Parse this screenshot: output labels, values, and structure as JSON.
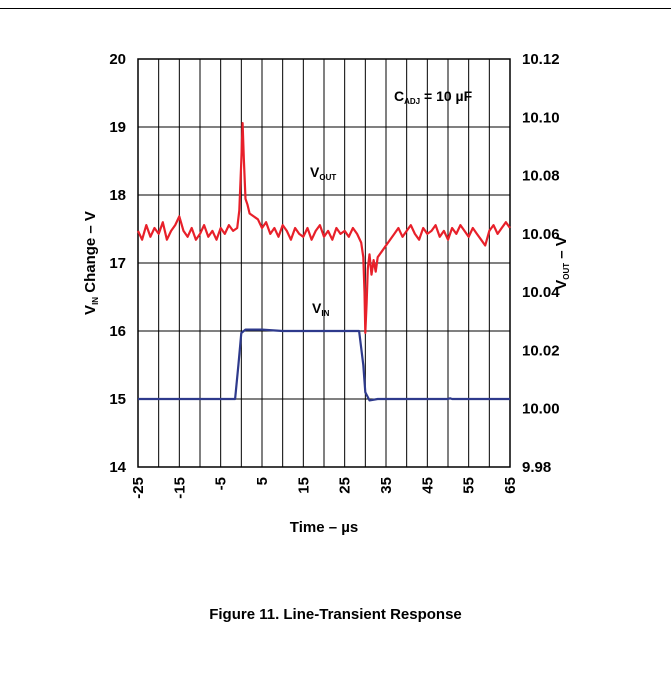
{
  "chart_data": {
    "type": "line",
    "x_axis": {
      "label_main": "Time – µs",
      "range": [
        -25,
        65
      ],
      "grid_step": 5,
      "tick_values": [
        -25,
        -15,
        -5,
        5,
        15,
        25,
        35,
        45,
        55,
        65
      ],
      "tick_labels": [
        "-25",
        "-15",
        "-5",
        "5",
        "15",
        "25",
        "35",
        "45",
        "55",
        "65"
      ]
    },
    "y_left": {
      "label_main": "V",
      "label_sub": "IN",
      "label_rest": " Change – V",
      "range": [
        14,
        20
      ],
      "tick_values": [
        14,
        15,
        16,
        17,
        18,
        19,
        20
      ],
      "tick_labels": [
        "14",
        "15",
        "16",
        "17",
        "18",
        "19",
        "20"
      ]
    },
    "y_right": {
      "label_main": "V",
      "label_sub": "OUT",
      "label_rest": " – V",
      "range": [
        9.98,
        10.12
      ],
      "tick_values": [
        9.98,
        10.0,
        10.02,
        10.04,
        10.06,
        10.08,
        10.1,
        10.12
      ],
      "tick_labels": [
        "9.98",
        "10.00",
        "10.02",
        "10.04",
        "10.06",
        "10.08",
        "10.10",
        "10.12"
      ]
    },
    "grid": true,
    "annotation": {
      "main": "C",
      "sub": "ADJ",
      "rest": " = 10 µF"
    },
    "series": [
      {
        "label_main": "V",
        "label_sub": "OUT",
        "color": "#e8202a",
        "axis": "right",
        "points": [
          [
            -25,
            10.061
          ],
          [
            -24,
            10.058
          ],
          [
            -23,
            10.063
          ],
          [
            -22,
            10.059
          ],
          [
            -21,
            10.062
          ],
          [
            -20,
            10.06
          ],
          [
            -19,
            10.064
          ],
          [
            -18,
            10.058
          ],
          [
            -17,
            10.061
          ],
          [
            -16,
            10.063
          ],
          [
            -15,
            10.066
          ],
          [
            -14,
            10.061
          ],
          [
            -13,
            10.059
          ],
          [
            -12,
            10.062
          ],
          [
            -11,
            10.058
          ],
          [
            -10,
            10.06
          ],
          [
            -9,
            10.063
          ],
          [
            -8,
            10.059
          ],
          [
            -7,
            10.061
          ],
          [
            -6,
            10.058
          ],
          [
            -5,
            10.062
          ],
          [
            -4,
            10.06
          ],
          [
            -3,
            10.063
          ],
          [
            -2,
            10.061
          ],
          [
            -1,
            10.062
          ],
          [
            -0.5,
            10.068
          ],
          [
            0,
            10.085
          ],
          [
            0.3,
            10.098
          ],
          [
            0.6,
            10.086
          ],
          [
            1,
            10.072
          ],
          [
            1.5,
            10.07
          ],
          [
            2,
            10.067
          ],
          [
            3,
            10.066
          ],
          [
            4,
            10.065
          ],
          [
            5,
            10.062
          ],
          [
            6,
            10.064
          ],
          [
            7,
            10.06
          ],
          [
            8,
            10.062
          ],
          [
            9,
            10.059
          ],
          [
            10,
            10.063
          ],
          [
            11,
            10.061
          ],
          [
            12,
            10.058
          ],
          [
            13,
            10.062
          ],
          [
            14,
            10.06
          ],
          [
            15,
            10.059
          ],
          [
            16,
            10.062
          ],
          [
            17,
            10.058
          ],
          [
            18,
            10.061
          ],
          [
            19,
            10.063
          ],
          [
            20,
            10.059
          ],
          [
            21,
            10.061
          ],
          [
            22,
            10.058
          ],
          [
            23,
            10.062
          ],
          [
            24,
            10.06
          ],
          [
            25,
            10.061
          ],
          [
            26,
            10.059
          ],
          [
            27,
            10.062
          ],
          [
            28,
            10.06
          ],
          [
            29,
            10.057
          ],
          [
            29.5,
            10.052
          ],
          [
            29.8,
            10.04
          ],
          [
            30.0,
            10.026
          ],
          [
            30.3,
            10.036
          ],
          [
            30.6,
            10.048
          ],
          [
            31,
            10.053
          ],
          [
            31.5,
            10.046
          ],
          [
            32,
            10.051
          ],
          [
            32.5,
            10.047
          ],
          [
            33,
            10.052
          ],
          [
            34,
            10.054
          ],
          [
            35,
            10.056
          ],
          [
            36,
            10.058
          ],
          [
            37,
            10.06
          ],
          [
            38,
            10.062
          ],
          [
            39,
            10.059
          ],
          [
            40,
            10.061
          ],
          [
            41,
            10.063
          ],
          [
            42,
            10.06
          ],
          [
            43,
            10.058
          ],
          [
            44,
            10.062
          ],
          [
            45,
            10.06
          ],
          [
            46,
            10.061
          ],
          [
            47,
            10.063
          ],
          [
            48,
            10.059
          ],
          [
            49,
            10.061
          ],
          [
            50,
            10.058
          ],
          [
            51,
            10.062
          ],
          [
            52,
            10.06
          ],
          [
            53,
            10.063
          ],
          [
            54,
            10.061
          ],
          [
            55,
            10.059
          ],
          [
            56,
            10.062
          ],
          [
            57,
            10.06
          ],
          [
            58,
            10.058
          ],
          [
            59,
            10.056
          ],
          [
            60,
            10.061
          ],
          [
            61,
            10.063
          ],
          [
            62,
            10.06
          ],
          [
            63,
            10.062
          ],
          [
            64,
            10.064
          ],
          [
            65,
            10.062
          ]
        ]
      },
      {
        "label_main": "V",
        "label_sub": "IN",
        "color": "#2e3a8c",
        "axis": "left",
        "points": [
          [
            -25,
            15.0
          ],
          [
            -1.5,
            15.0
          ],
          [
            -0.7,
            15.5
          ],
          [
            0,
            15.97
          ],
          [
            1,
            16.02
          ],
          [
            5,
            16.02
          ],
          [
            10,
            16.0
          ],
          [
            20,
            16.0
          ],
          [
            28.5,
            16.0
          ],
          [
            29.5,
            15.5
          ],
          [
            30.0,
            15.1
          ],
          [
            31,
            14.98
          ],
          [
            33,
            15.0
          ],
          [
            50,
            15.0
          ],
          [
            50.5,
            15.01
          ],
          [
            51,
            15.0
          ],
          [
            65,
            15.0
          ]
        ]
      }
    ]
  },
  "caption": "Figure 11. Line-Transient Response"
}
